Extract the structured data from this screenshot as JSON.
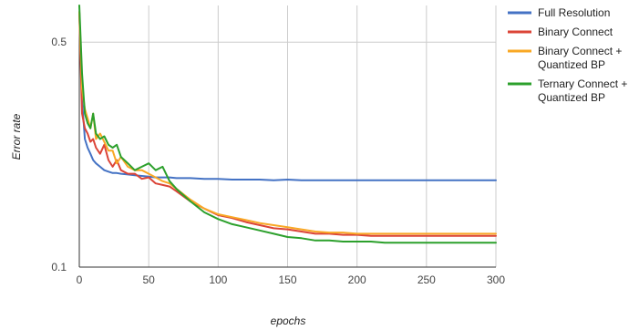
{
  "chart_data": {
    "type": "line",
    "xlabel": "epochs",
    "ylabel": "Error rate",
    "y_scale": "log",
    "xlim": [
      0,
      300
    ],
    "ylim": [
      0.1,
      0.65
    ],
    "x_ticks": [
      "0",
      "50",
      "100",
      "150",
      "200",
      "250",
      "300"
    ],
    "x_tick_values": [
      0,
      50,
      100,
      150,
      200,
      250,
      300
    ],
    "y_ticks": [
      "0.1",
      "0.5"
    ],
    "y_tick_values": [
      0.1,
      0.5
    ],
    "grid": "vertical",
    "legend_position": "right",
    "series": [
      {
        "name": "Full Resolution",
        "color": "#4472c4",
        "x": [
          0,
          2,
          4,
          6,
          8,
          10,
          12,
          15,
          18,
          21,
          24,
          27,
          30,
          35,
          40,
          45,
          50,
          55,
          60,
          65,
          70,
          80,
          90,
          100,
          110,
          120,
          130,
          140,
          150,
          160,
          170,
          180,
          190,
          200,
          210,
          220,
          230,
          240,
          250,
          260,
          270,
          280,
          290,
          300
        ],
        "y": [
          0.62,
          0.33,
          0.25,
          0.235,
          0.225,
          0.215,
          0.21,
          0.205,
          0.2,
          0.198,
          0.196,
          0.196,
          0.195,
          0.194,
          0.193,
          0.192,
          0.191,
          0.19,
          0.19,
          0.19,
          0.189,
          0.189,
          0.188,
          0.188,
          0.187,
          0.187,
          0.187,
          0.186,
          0.187,
          0.186,
          0.186,
          0.186,
          0.186,
          0.186,
          0.186,
          0.186,
          0.186,
          0.186,
          0.186,
          0.186,
          0.186,
          0.186,
          0.186,
          0.186
        ]
      },
      {
        "name": "Binary Connect",
        "color": "#db4437",
        "x": [
          0,
          2,
          4,
          6,
          8,
          10,
          12,
          15,
          18,
          21,
          24,
          27,
          30,
          35,
          40,
          45,
          50,
          55,
          60,
          65,
          70,
          80,
          90,
          100,
          110,
          120,
          130,
          140,
          150,
          160,
          170,
          180,
          190,
          200,
          210,
          220,
          230,
          240,
          250,
          260,
          270,
          280,
          290,
          300
        ],
        "y": [
          0.62,
          0.3,
          0.27,
          0.26,
          0.245,
          0.25,
          0.235,
          0.225,
          0.24,
          0.215,
          0.205,
          0.215,
          0.2,
          0.195,
          0.195,
          0.188,
          0.19,
          0.182,
          0.18,
          0.178,
          0.172,
          0.16,
          0.152,
          0.145,
          0.142,
          0.138,
          0.135,
          0.132,
          0.131,
          0.129,
          0.127,
          0.127,
          0.126,
          0.126,
          0.125,
          0.125,
          0.125,
          0.125,
          0.125,
          0.125,
          0.125,
          0.125,
          0.125,
          0.125
        ]
      },
      {
        "name": "Binary Connect + Quantized BP",
        "color": "#f9a825",
        "x": [
          0,
          2,
          4,
          6,
          8,
          10,
          12,
          15,
          18,
          21,
          24,
          27,
          30,
          35,
          40,
          45,
          50,
          55,
          60,
          65,
          70,
          80,
          90,
          100,
          110,
          120,
          130,
          140,
          150,
          160,
          170,
          180,
          190,
          200,
          210,
          220,
          230,
          240,
          250,
          260,
          270,
          280,
          290,
          300
        ],
        "y": [
          0.62,
          0.36,
          0.31,
          0.29,
          0.27,
          0.3,
          0.25,
          0.26,
          0.245,
          0.23,
          0.23,
          0.21,
          0.22,
          0.205,
          0.2,
          0.2,
          0.195,
          0.19,
          0.185,
          0.182,
          0.175,
          0.162,
          0.152,
          0.146,
          0.143,
          0.14,
          0.137,
          0.135,
          0.133,
          0.131,
          0.129,
          0.128,
          0.128,
          0.127,
          0.127,
          0.127,
          0.127,
          0.127,
          0.127,
          0.127,
          0.127,
          0.127,
          0.127,
          0.127
        ]
      },
      {
        "name": "Ternary Connect + Quantized BP",
        "color": "#2ca02c",
        "x": [
          0,
          2,
          4,
          6,
          8,
          10,
          12,
          15,
          18,
          21,
          24,
          27,
          30,
          35,
          40,
          45,
          50,
          55,
          60,
          65,
          70,
          80,
          90,
          100,
          110,
          120,
          130,
          140,
          150,
          160,
          170,
          180,
          190,
          200,
          210,
          220,
          230,
          240,
          250,
          260,
          270,
          280,
          290,
          300
        ],
        "y": [
          0.65,
          0.4,
          0.3,
          0.28,
          0.27,
          0.3,
          0.26,
          0.25,
          0.255,
          0.24,
          0.235,
          0.24,
          0.22,
          0.21,
          0.2,
          0.205,
          0.21,
          0.2,
          0.205,
          0.185,
          0.175,
          0.16,
          0.148,
          0.141,
          0.136,
          0.133,
          0.13,
          0.127,
          0.124,
          0.123,
          0.121,
          0.121,
          0.12,
          0.12,
          0.12,
          0.119,
          0.119,
          0.119,
          0.119,
          0.119,
          0.119,
          0.119,
          0.119,
          0.119
        ]
      }
    ]
  }
}
